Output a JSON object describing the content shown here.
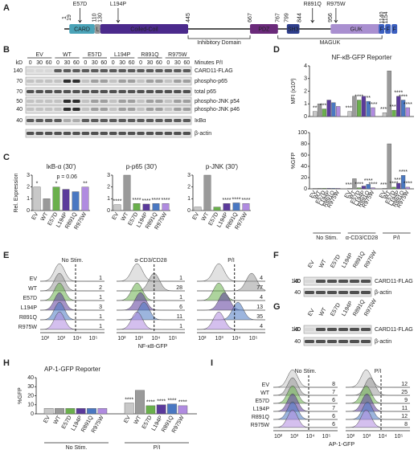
{
  "panel_letters": [
    "A",
    "B",
    "C",
    "D",
    "E",
    "F",
    "G",
    "H",
    "I"
  ],
  "domain_diagram": {
    "positions": [
      1,
      19,
      110,
      130,
      445,
      667,
      767,
      799,
      844,
      956,
      1140,
      1154
    ],
    "domains": [
      {
        "name": "CARD",
        "start": 19,
        "end": 110,
        "color": "#4aa3b8"
      },
      {
        "name": "L",
        "start": 110,
        "end": 130,
        "color": "#9a9a9a"
      },
      {
        "name": "Coiled-Coil",
        "start": 130,
        "end": 445,
        "color": "#4b2a8c"
      },
      {
        "name": "PDZ",
        "start": 667,
        "end": 767,
        "color": "#6a2a7a"
      },
      {
        "name": "SH3",
        "start": 799,
        "end": 844,
        "color": "#2e3e8c"
      },
      {
        "name": "GUK",
        "start": 956,
        "end": 1140,
        "color": "#a98fd0"
      },
      {
        "name": "F",
        "start": 1140,
        "end": 1154,
        "color": "#3b5fc0"
      },
      {
        "name": "F",
        "start": 1140,
        "end": 1154,
        "color": "#3b5fc0"
      },
      {
        "name": "F",
        "start": 1140,
        "end": 1154,
        "color": "#3b5fc0"
      }
    ],
    "regions": [
      {
        "name": "Inhibitory Domain",
        "start": 445,
        "end": 667
      },
      {
        "name": "MAGUK",
        "start": 767,
        "end": 1140
      }
    ],
    "mutations": [
      "E57D",
      "L194P",
      "R891Q",
      "R975W"
    ]
  },
  "blot_b": {
    "kd_header": "kD",
    "genotypes": [
      "EV",
      "WT",
      "E57D",
      "L194P",
      "R891Q",
      "R975W"
    ],
    "colors": [
      "#b8b8b8",
      "#555555",
      "#4a9a3a",
      "#4b2a8c",
      "#3b5fc0",
      "#8a6acb"
    ],
    "times": [
      "0",
      "30",
      "60"
    ],
    "time_label": "Minutes P/I",
    "rows": [
      {
        "name": "CARD11-FLAG",
        "kd": 140
      },
      {
        "name": "phospho-p65",
        "kd": 70
      },
      {
        "name": "total p65",
        "kd": 70
      },
      {
        "name": "phospho-JNK p54",
        "kd": 50
      },
      {
        "name": "phospho-JNK p46",
        "kd": 40
      },
      {
        "name": "IκBα",
        "kd": 40
      },
      {
        "name": "β-actin",
        "kd": null
      }
    ]
  },
  "chart_data": [
    {
      "type": "bar",
      "title": "IκB-α (30')",
      "ylabel": "Rel. Expression",
      "note": "p = 0.06",
      "categories": [
        "EV",
        "WT",
        "E57D",
        "L194P",
        "R891Q",
        "R975W"
      ],
      "values": [
        2.0,
        1.0,
        2.0,
        1.8,
        1.6,
        2.0
      ],
      "colors": [
        "#c8c8c8",
        "#9a9a9a",
        "#6ab04c",
        "#5b3a9b",
        "#4a78c2",
        "#b08be0"
      ],
      "stars": [
        "*",
        null,
        "*",
        null,
        null,
        "**"
      ],
      "ylim": [
        0,
        3
      ],
      "yticks": [
        0,
        1,
        2,
        3
      ]
    },
    {
      "type": "bar",
      "title": "p-p65 (30')",
      "categories": [
        "EV",
        "WT",
        "E57D",
        "L194P",
        "R891Q",
        "R975W"
      ],
      "values": [
        0.5,
        3.0,
        0.6,
        0.55,
        0.6,
        0.6
      ],
      "colors": [
        "#c8c8c8",
        "#9a9a9a",
        "#6ab04c",
        "#5b3a9b",
        "#4a78c2",
        "#b08be0"
      ],
      "stars": [
        "****",
        null,
        "****",
        "****",
        "****",
        "****"
      ],
      "ylim": [
        0,
        3
      ],
      "yticks": [
        0,
        1,
        2,
        3
      ]
    },
    {
      "type": "bar",
      "title": "p-JNK (30')",
      "categories": [
        "EV",
        "WT",
        "E57D",
        "L194P",
        "R891Q",
        "R975W"
      ],
      "values": [
        0.3,
        3.0,
        0.3,
        0.6,
        0.65,
        0.6
      ],
      "colors": [
        "#c8c8c8",
        "#9a9a9a",
        "#6ab04c",
        "#5b3a9b",
        "#4a78c2",
        "#b08be0"
      ],
      "stars": [
        null,
        null,
        null,
        "****",
        "****",
        "****"
      ],
      "ylim": [
        0,
        3
      ],
      "yticks": [
        0,
        1,
        2,
        3
      ]
    },
    {
      "type": "bar",
      "title": "NF-κB-GFP Reporter",
      "ylabel": "MFI (x10³)",
      "series": [
        {
          "color": "#c8c8c8",
          "values": [
            0.4,
            0.4,
            0.3
          ],
          "stars": [
            "**",
            "****",
            "****"
          ]
        },
        {
          "color": "#9a9a9a",
          "values": [
            1.0,
            1.6,
            3.6
          ]
        },
        {
          "color": "#6ab04c",
          "values": [
            0.6,
            1.3,
            0.5
          ],
          "stars": [
            "****",
            "****",
            "****"
          ]
        },
        {
          "color": "#5b3a9b",
          "values": [
            1.3,
            1.6,
            1.6
          ],
          "stars": [
            null,
            null,
            "****"
          ]
        },
        {
          "color": "#4a78c2",
          "values": [
            1.1,
            1.2,
            1.3
          ],
          "stars": [
            null,
            "**",
            "****"
          ]
        },
        {
          "color": "#b08be0",
          "values": [
            0.8,
            0.7,
            0.7
          ],
          "stars": [
            null,
            "****",
            "****"
          ]
        }
      ],
      "ylim": [
        0,
        4
      ],
      "yticks": [
        0,
        1,
        2,
        3,
        4
      ]
    },
    {
      "type": "bar",
      "ylabel": "%GFP",
      "categories": [
        "No Stim.",
        "α-CD3/CD28",
        "P/I"
      ],
      "series": [
        {
          "name": "EV",
          "color": "#c8c8c8",
          "values": [
            1,
            1,
            1
          ],
          "stars": [
            null,
            "****",
            "****"
          ]
        },
        {
          "name": "WT",
          "color": "#9a9a9a",
          "values": [
            1,
            18,
            80
          ]
        },
        {
          "name": "E57D",
          "color": "#6ab04c",
          "values": [
            1,
            2,
            3
          ],
          "stars": [
            null,
            "****",
            "****"
          ]
        },
        {
          "name": "L194P",
          "color": "#5b3a9b",
          "values": [
            1,
            5,
            10
          ],
          "stars": [
            null,
            null,
            "****"
          ]
        },
        {
          "name": "R891Q",
          "color": "#4a78c2",
          "values": [
            1,
            8,
            24
          ],
          "stars": [
            null,
            "****",
            "****"
          ]
        },
        {
          "name": "R975W",
          "color": "#b08be0",
          "values": [
            1,
            2,
            3
          ],
          "stars": [
            null,
            "****",
            "****"
          ]
        }
      ],
      "ylim": [
        0,
        100
      ],
      "yticks": [
        0,
        20,
        40,
        60,
        80,
        100
      ]
    },
    {
      "type": "bar",
      "title": "AP-1-GFP Reporter",
      "ylabel": "%GFP",
      "categories": [
        "No Stim.",
        "P/I"
      ],
      "series": [
        {
          "name": "EV",
          "color": "#c8c8c8",
          "values": [
            6,
            12
          ],
          "stars": [
            null,
            "****"
          ]
        },
        {
          "name": "WT",
          "color": "#9a9a9a",
          "values": [
            6,
            26
          ]
        },
        {
          "name": "E57D",
          "color": "#6ab04c",
          "values": [
            6,
            9
          ],
          "stars": [
            null,
            "****"
          ]
        },
        {
          "name": "L194P",
          "color": "#5b3a9b",
          "values": [
            6,
            10
          ],
          "stars": [
            null,
            "****"
          ]
        },
        {
          "name": "R891Q",
          "color": "#4a78c2",
          "values": [
            6,
            11
          ],
          "stars": [
            null,
            "****"
          ]
        },
        {
          "name": "R975W",
          "color": "#b08be0",
          "values": [
            6,
            9
          ],
          "stars": [
            null,
            "****"
          ]
        }
      ],
      "ylim": [
        0,
        40
      ],
      "yticks": [
        0,
        10,
        20,
        30,
        40
      ]
    }
  ],
  "histogram_e": {
    "rows": [
      "EV",
      "WT",
      "E57D",
      "L194P",
      "R891Q",
      "R975W"
    ],
    "colors": [
      "#c8c8c8",
      "#9a9a9a",
      "#6ab04c",
      "#5b3a9b",
      "#4a78c2",
      "#b08be0"
    ],
    "columns": [
      {
        "name": "No Stim.",
        "values": [
          1,
          2,
          1,
          3,
          1,
          1
        ]
      },
      {
        "name": "α-CD3/CD28",
        "values": [
          1,
          28,
          1,
          6,
          11,
          1
        ]
      },
      {
        "name": "P/I",
        "values": [
          4,
          77,
          4,
          13,
          35,
          4
        ]
      }
    ],
    "xlabel": "NF-κB-GFP",
    "xticks": [
      "10²",
      "10³",
      "10⁴",
      "10⁵"
    ]
  },
  "blot_f": {
    "kd_header": "kD",
    "genotypes": [
      "EV",
      "WT",
      "E57D",
      "L194P",
      "R891Q",
      "R975W"
    ],
    "colors": [
      "#b8b8b8",
      "#555555",
      "#4a9a3a",
      "#4b2a8c",
      "#3b5fc0",
      "#8a6acb"
    ],
    "rows": [
      {
        "name": "CARD11-FLAG",
        "kd": 140
      },
      {
        "name": "β-actin",
        "kd": 40
      }
    ]
  },
  "blot_g": {
    "kd_header": "kD",
    "genotypes": [
      "EV",
      "WT",
      "E57D",
      "L194P",
      "R891Q",
      "R975W"
    ],
    "colors": [
      "#b8b8b8",
      "#555555",
      "#4a9a3a",
      "#4b2a8c",
      "#3b5fc0",
      "#8a6acb"
    ],
    "rows": [
      {
        "name": "CARD11-FLAG",
        "kd": 140
      },
      {
        "name": "β-actin",
        "kd": 40
      }
    ]
  },
  "histogram_i": {
    "rows": [
      "EV",
      "WT",
      "E57D",
      "L194P",
      "R891Q",
      "R975W"
    ],
    "colors": [
      "#c8c8c8",
      "#9a9a9a",
      "#6ab04c",
      "#5b3a9b",
      "#4a78c2",
      "#b08be0"
    ],
    "columns": [
      {
        "name": "No Stim.",
        "values": [
          8,
          7,
          6,
          7,
          6,
          6
        ]
      },
      {
        "name": "P/I",
        "values": [
          12,
          25,
          9,
          11,
          12,
          8
        ]
      }
    ],
    "xlabel": "AP-1-GFP",
    "xticks": [
      "10²",
      "10³",
      "10⁴",
      "10⁵"
    ]
  }
}
